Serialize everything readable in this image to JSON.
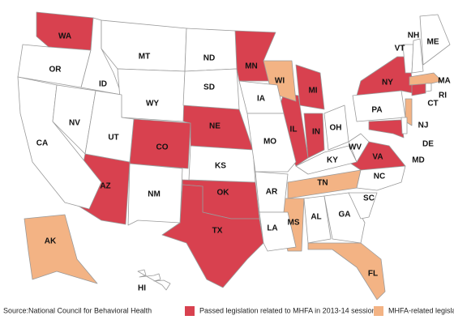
{
  "map": {
    "groups": [
      {
        "name": "Passed legislation related to MHFA in 2013-14 session",
        "color": "#d8414f",
        "states": [
          "WA",
          "AZ",
          "CO",
          "NE",
          "OK",
          "TX",
          "MN",
          "IL",
          "IN",
          "MI",
          "NY",
          "VA",
          "MD",
          "CT"
        ]
      },
      {
        "name": "MHFA-related legislation failed",
        "color": "#f3b384",
        "states": [
          "WI",
          "MA",
          "NJ",
          "TN",
          "MS",
          "FL",
          "AK"
        ]
      }
    ],
    "other_states": [
      "OR",
      "CA",
      "NV",
      "ID",
      "MT",
      "WY",
      "UT",
      "NM",
      "ND",
      "SD",
      "KS",
      "IA",
      "MO",
      "AR",
      "LA",
      "OH",
      "KY",
      "AL",
      "GA",
      "SC",
      "NC",
      "WV",
      "PA",
      "DE",
      "RI",
      "VT",
      "NH",
      "ME",
      "HI"
    ],
    "source": "Source:National Council for Behavioral Health"
  }
}
